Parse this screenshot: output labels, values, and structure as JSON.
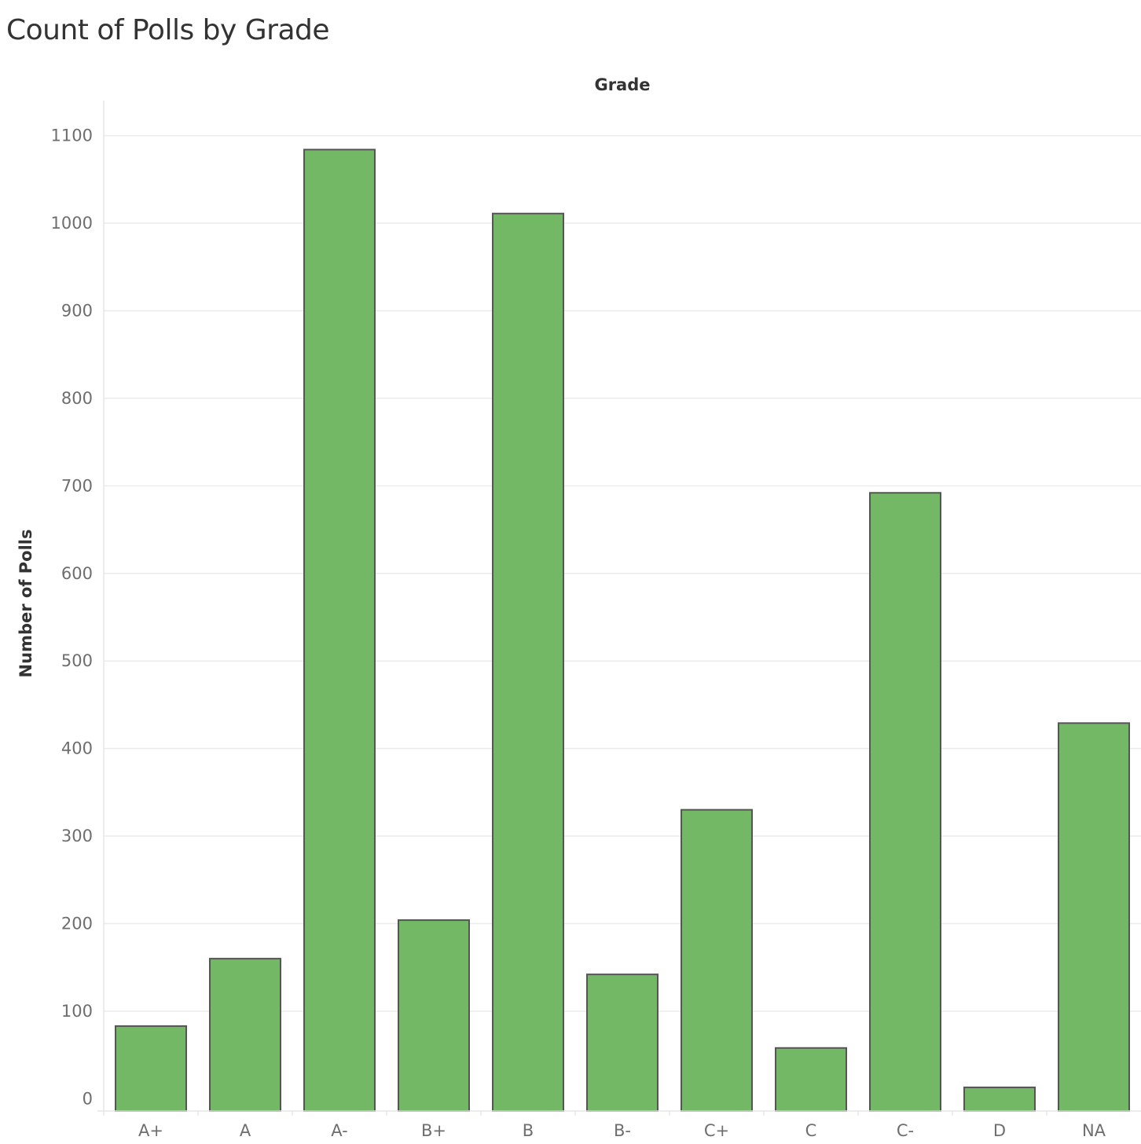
{
  "chart_data": {
    "type": "bar",
    "title": "Count of Polls by Grade",
    "xlabel": "Grade",
    "ylabel": "Number of Polls",
    "categories": [
      "A+",
      "A",
      "A-",
      "B+",
      "B",
      "B-",
      "C+",
      "C",
      "C-",
      "D",
      "NA"
    ],
    "values": [
      83,
      160,
      1084,
      204,
      1011,
      142,
      330,
      58,
      692,
      13,
      429
    ],
    "ylim": [
      -14,
      1140
    ],
    "yticks": [
      "0",
      "100",
      "200",
      "300",
      "400",
      "500",
      "600",
      "700",
      "800",
      "900",
      "1000",
      "1100"
    ],
    "grid": true,
    "legend": "none",
    "bar_color": "#73b865",
    "bar_edge_color": "#555555"
  }
}
